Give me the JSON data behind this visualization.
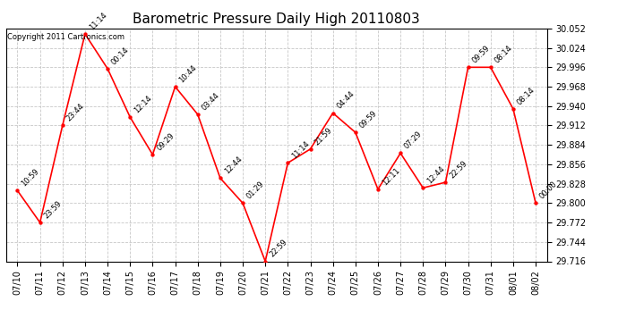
{
  "title": "Barometric Pressure Daily High 20110803",
  "copyright": "Copyright 2011 Cartronics.com",
  "x_labels": [
    "07/10",
    "07/11",
    "07/12",
    "07/13",
    "07/14",
    "07/15",
    "07/16",
    "07/17",
    "07/18",
    "07/19",
    "07/20",
    "07/21",
    "07/22",
    "07/23",
    "07/24",
    "07/25",
    "07/26",
    "07/27",
    "07/28",
    "07/29",
    "07/30",
    "07/31",
    "08/01",
    "08/02"
  ],
  "y_values": [
    29.818,
    29.772,
    29.912,
    30.044,
    29.994,
    29.924,
    29.87,
    29.968,
    29.928,
    29.836,
    29.8,
    29.716,
    29.858,
    29.878,
    29.93,
    29.902,
    29.82,
    29.872,
    29.822,
    29.83,
    29.996,
    29.996,
    29.936,
    29.8
  ],
  "point_labels": [
    "10:59",
    "23:59",
    "23:44",
    "11:14",
    "00:14",
    "12:14",
    "09:29",
    "10:44",
    "03:44",
    "12:44",
    "01:29",
    "22:59",
    "11:14",
    "21:59",
    "04:44",
    "09:59",
    "12:11",
    "07:29",
    "12:44",
    "22:59",
    "09:59",
    "08:14",
    "08:14",
    "00:00"
  ],
  "line_color": "#FF0000",
  "marker_color": "#FF0000",
  "bg_color": "#FFFFFF",
  "plot_bg_color": "#FFFFFF",
  "grid_color": "#C8C8C8",
  "title_fontsize": 11,
  "copyright_fontsize": 6,
  "tick_label_fontsize": 7,
  "point_label_fontsize": 6,
  "ylim_min": 29.716,
  "ylim_max": 30.052,
  "ytick_interval": 0.028
}
